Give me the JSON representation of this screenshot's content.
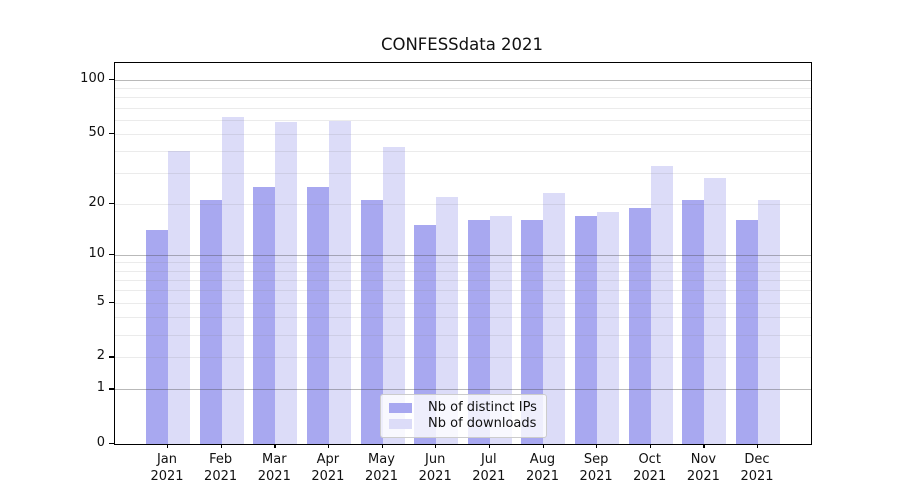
{
  "title": "CONFESSdata 2021",
  "colors": {
    "distinct_ips": "#a8a8f0",
    "downloads": "#dcdcf8",
    "grid_major": "rgba(70,70,70,0.38)",
    "grid_minor": "rgba(130,130,130,0.16)",
    "axis": "#000000"
  },
  "legend": {
    "position": "lower center"
  },
  "chart_data": {
    "type": "bar",
    "title": "CONFESSdata 2021",
    "categories": [
      "Jan 2021",
      "Feb 2021",
      "Mar 2021",
      "Apr 2021",
      "May 2021",
      "Jun 2021",
      "Jul 2021",
      "Aug 2021",
      "Sep 2021",
      "Oct 2021",
      "Nov 2021",
      "Dec 2021"
    ],
    "series": [
      {
        "name": "Nb of distinct IPs",
        "color": "#a8a8f0",
        "values": [
          14,
          21,
          25,
          25,
          21,
          15,
          16,
          16,
          17,
          19,
          21,
          16
        ]
      },
      {
        "name": "Nb of downloads",
        "color": "#dcdcf8",
        "values": [
          40,
          62,
          58,
          59,
          42,
          22,
          17,
          23,
          18,
          33,
          28,
          21
        ]
      }
    ],
    "xlabel": "",
    "ylabel": "",
    "y_scale": "log10(1+y)",
    "y_tick_labels": [
      "100",
      "50",
      "20",
      "10",
      "5",
      "2",
      "1",
      "0"
    ],
    "y_ticks": [
      100,
      50,
      20,
      10,
      5,
      2,
      1,
      0
    ],
    "y_major_gridlines": [
      1,
      10,
      100
    ],
    "y_minor_gridlines": [
      2,
      3,
      4,
      5,
      6,
      7,
      8,
      9,
      20,
      30,
      40,
      50,
      60,
      70,
      80,
      90
    ],
    "ylim": [
      0,
      124
    ],
    "grid": "horizontal",
    "legend_position": "lower center"
  }
}
